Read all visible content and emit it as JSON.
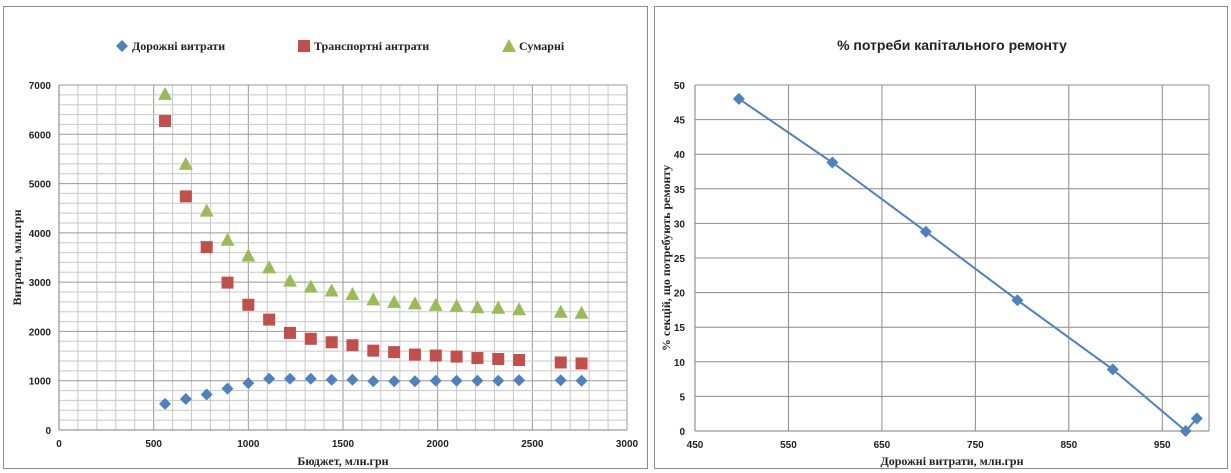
{
  "chart_data": [
    {
      "type": "scatter",
      "title": "",
      "xlabel": "Бюджет, млн.грн",
      "ylabel": "Витрати, млн.грн",
      "xlim": [
        0,
        3000
      ],
      "ylim": [
        0,
        7000
      ],
      "xticks": [
        "0",
        "500",
        "1000",
        "1500",
        "2000",
        "2500",
        "3000"
      ],
      "yticks": [
        "0",
        "1000",
        "2000",
        "3000",
        "4000",
        "5000",
        "6000",
        "7000"
      ],
      "grid": true,
      "legend_position": "top",
      "x": [
        560,
        670,
        780,
        890,
        1000,
        1110,
        1220,
        1330,
        1440,
        1550,
        1660,
        1770,
        1880,
        1990,
        2100,
        2210,
        2320,
        2430,
        2650,
        2760
      ],
      "series": [
        {
          "name": "Дорожні витрати",
          "marker": "diamond",
          "color": "#4f81bd",
          "values": [
            530,
            630,
            720,
            840,
            950,
            1040,
            1040,
            1040,
            1020,
            1020,
            990,
            990,
            990,
            1000,
            1000,
            1000,
            1000,
            1010,
            1010,
            1000
          ]
        },
        {
          "name": "Транспортні антрати",
          "marker": "square",
          "color": "#c0504d",
          "values": [
            6270,
            4740,
            3710,
            2990,
            2540,
            2240,
            1970,
            1850,
            1780,
            1720,
            1610,
            1580,
            1530,
            1510,
            1490,
            1460,
            1440,
            1420,
            1370,
            1350
          ]
        },
        {
          "name": "Сумарні",
          "marker": "triangle",
          "color": "#9bbb59",
          "values": [
            6820,
            5400,
            4450,
            3860,
            3540,
            3300,
            3030,
            2910,
            2830,
            2760,
            2650,
            2600,
            2570,
            2540,
            2520,
            2490,
            2480,
            2450,
            2400,
            2380
          ]
        }
      ]
    },
    {
      "type": "line",
      "title": "% потреби капітального  ремонту",
      "xlabel": "Дорожні витрати, млн.грн",
      "ylabel": "% секцій, що потребують ремонту",
      "xlim": [
        450,
        1000
      ],
      "ylim": [
        0,
        50
      ],
      "xticks": [
        "450",
        "550",
        "650",
        "750",
        "850",
        "950"
      ],
      "yticks": [
        "0",
        "5",
        "10",
        "15",
        "20",
        "25",
        "30",
        "35",
        "40",
        "45",
        "50"
      ],
      "grid": true,
      "series": [
        {
          "name": "",
          "marker": "diamond",
          "color": "#4f81bd",
          "x": [
            497,
            597,
            697,
            795,
            897,
            975,
            987
          ],
          "values": [
            48,
            38.8,
            28.8,
            18.9,
            8.9,
            0,
            1.8
          ]
        }
      ]
    }
  ]
}
